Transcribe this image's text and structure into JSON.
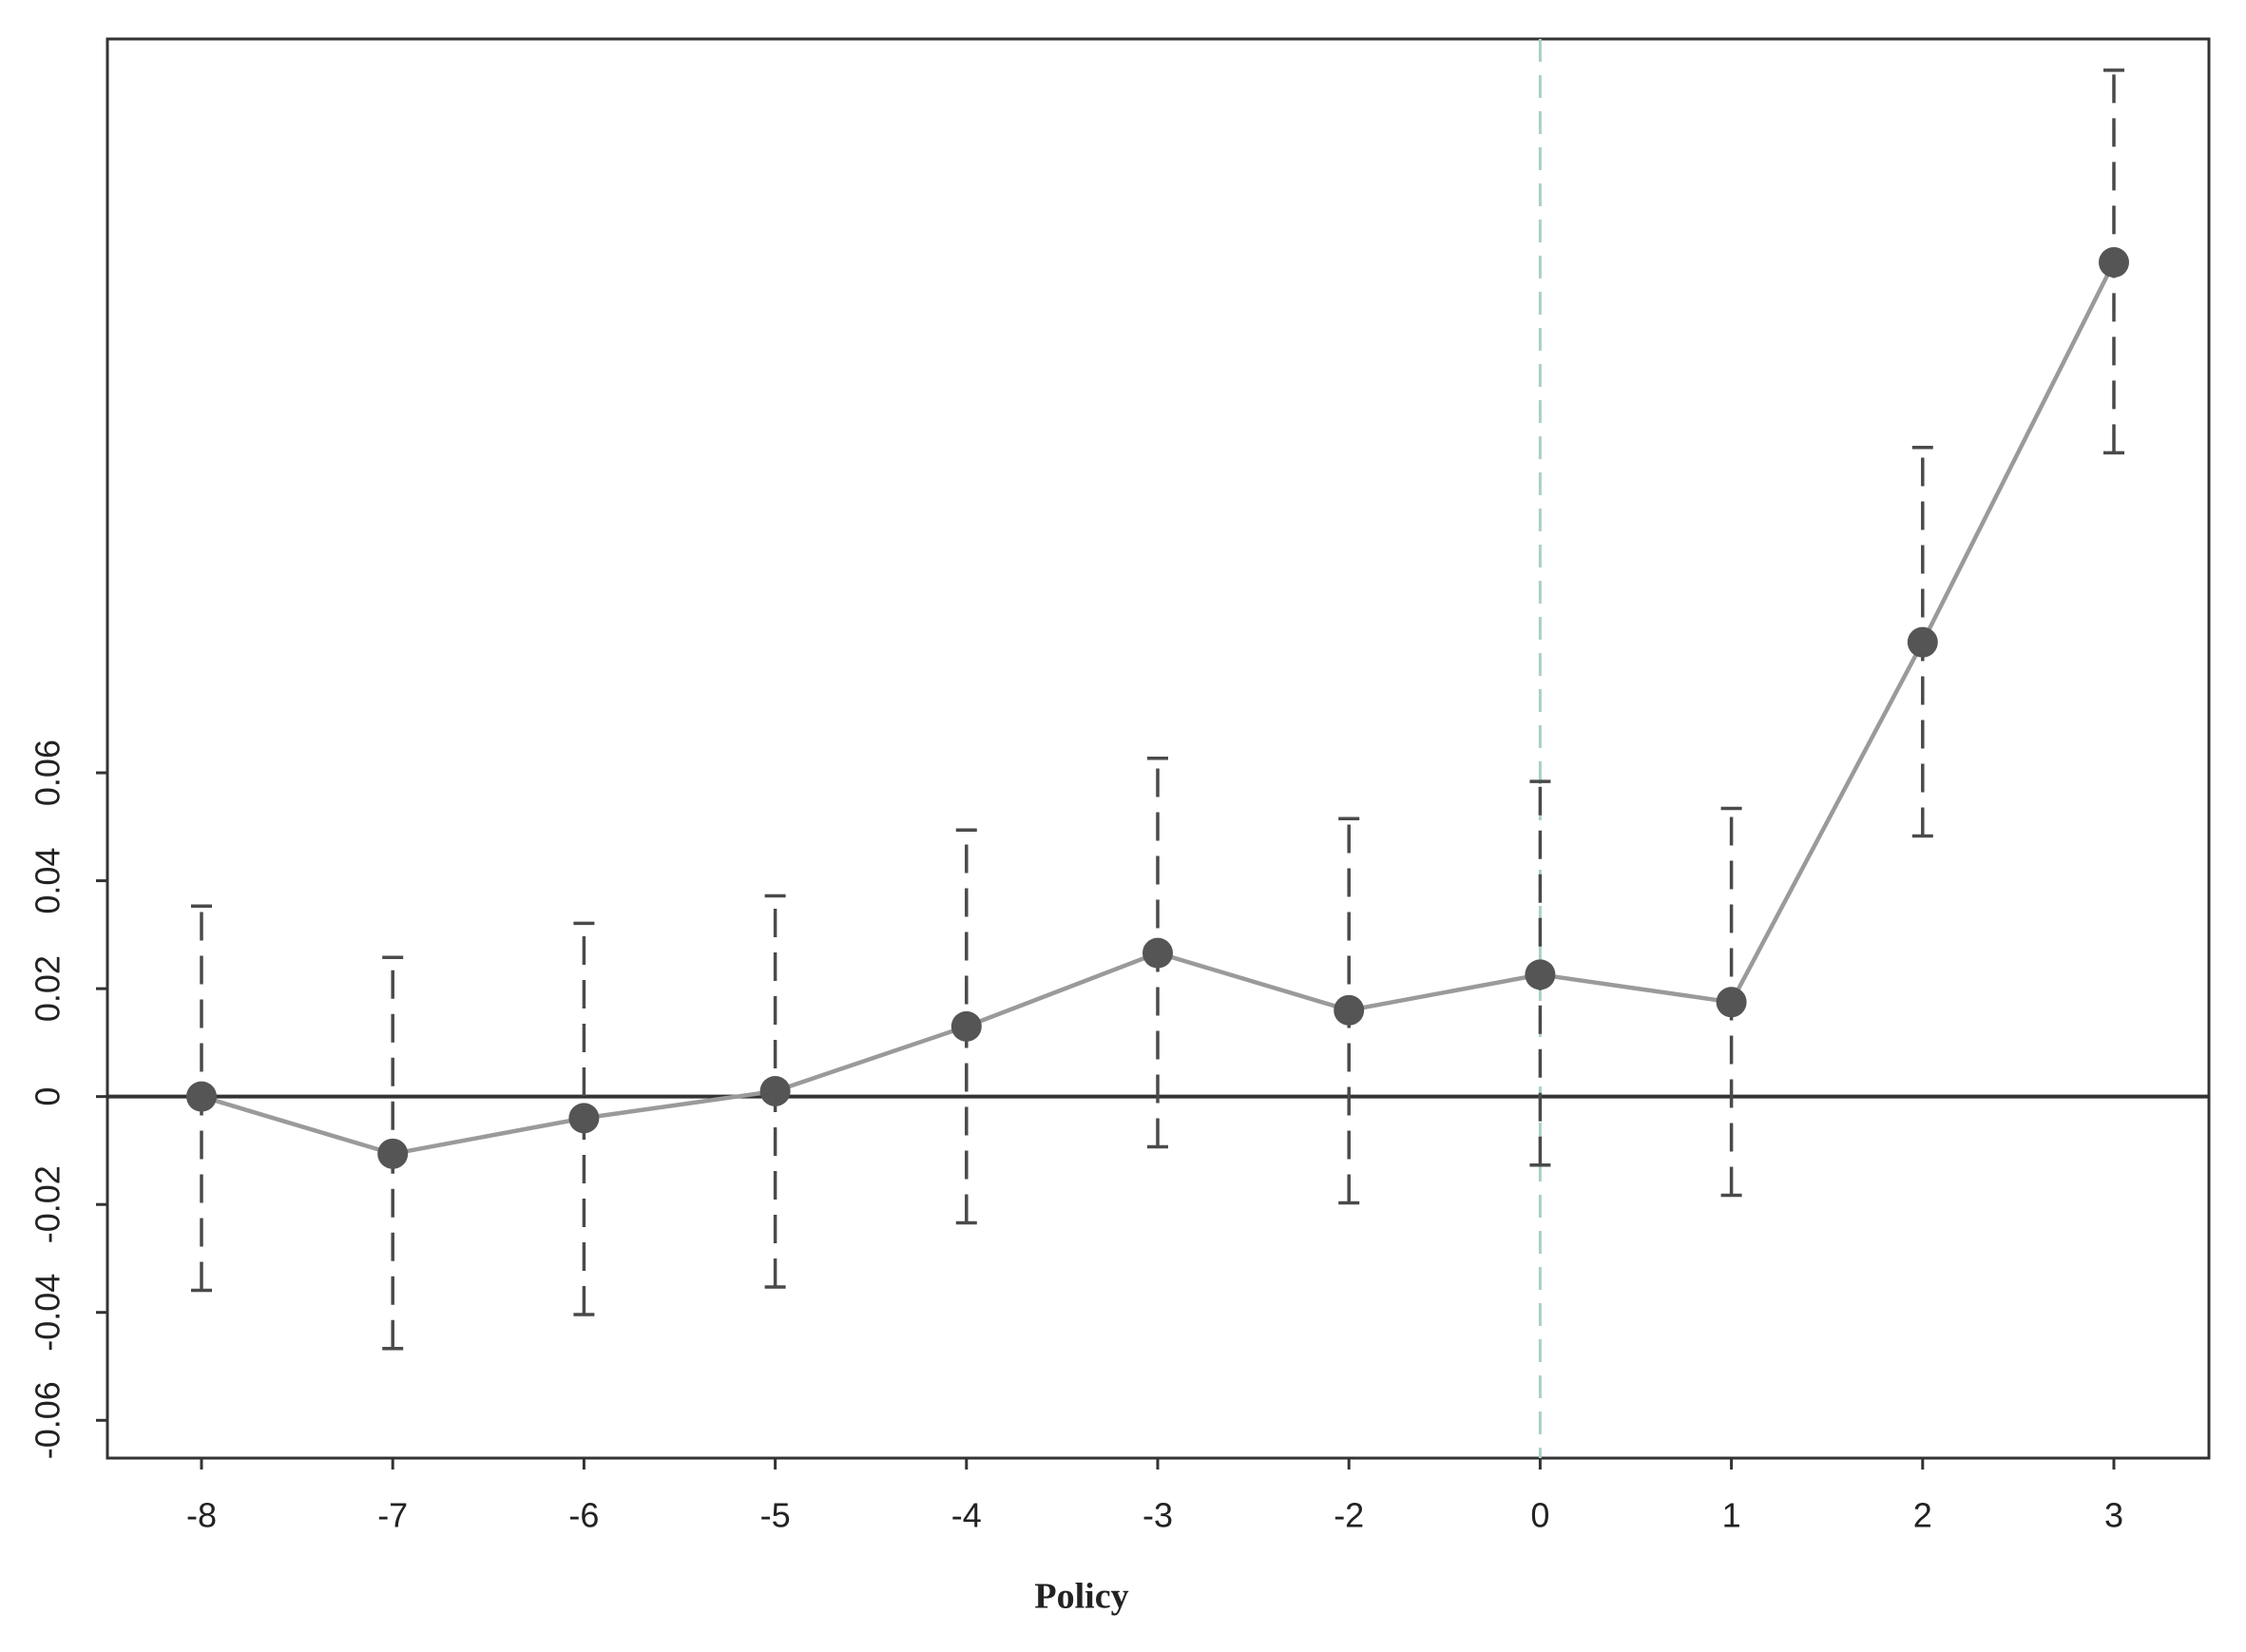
{
  "chart_data": {
    "type": "errorbar-line",
    "x_label": "Policy",
    "categories": [
      "-8",
      "-7",
      "-6",
      "-5",
      "-4",
      "-3",
      "-2",
      "0",
      "1",
      "2",
      "3"
    ],
    "values": [
      0,
      -0.0106,
      -0.004,
      0.001,
      0.013,
      0.0266,
      0.016,
      0.0226,
      0.0175,
      0.0842,
      0.1546
    ],
    "lower": [
      -0.0359,
      -0.0467,
      -0.0404,
      -0.0353,
      -0.0234,
      -0.0093,
      -0.0197,
      -0.0127,
      -0.0183,
      0.0483,
      0.1193
    ],
    "upper": [
      0.0353,
      0.0258,
      0.0321,
      0.0372,
      0.0494,
      0.0627,
      0.0515,
      0.0584,
      0.0534,
      0.1203,
      0.1902
    ],
    "ylim": [
      -0.067,
      0.196
    ],
    "yticks": [
      {
        "value": -0.06,
        "label": "-0.06"
      },
      {
        "value": -0.04,
        "label": "-0.04"
      },
      {
        "value": -0.02,
        "label": "-0.02"
      },
      0,
      {
        "value": 0.02,
        "label": "0.02"
      },
      {
        "value": 0.04,
        "label": "0.04"
      },
      {
        "value": 0.06,
        "label": "0.06"
      }
    ],
    "hline": 0,
    "vline": "0",
    "line_color": "#9a9a9a",
    "marker_color": "#555555",
    "errorbar_color": "#4a4a4a",
    "hline_color": "#333333",
    "vline_color": "#a9d0c8"
  }
}
